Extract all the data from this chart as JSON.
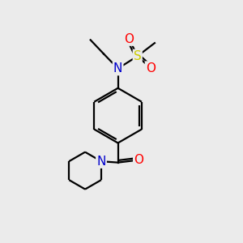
{
  "bg_color": "#ebebeb",
  "atom_colors": {
    "C": "#000000",
    "N": "#0000cc",
    "O": "#ff0000",
    "S": "#cccc00"
  },
  "bond_color": "#000000",
  "line_width": 1.6,
  "font_size": 10,
  "fig_size": [
    3.0,
    3.0
  ],
  "dpi": 100
}
